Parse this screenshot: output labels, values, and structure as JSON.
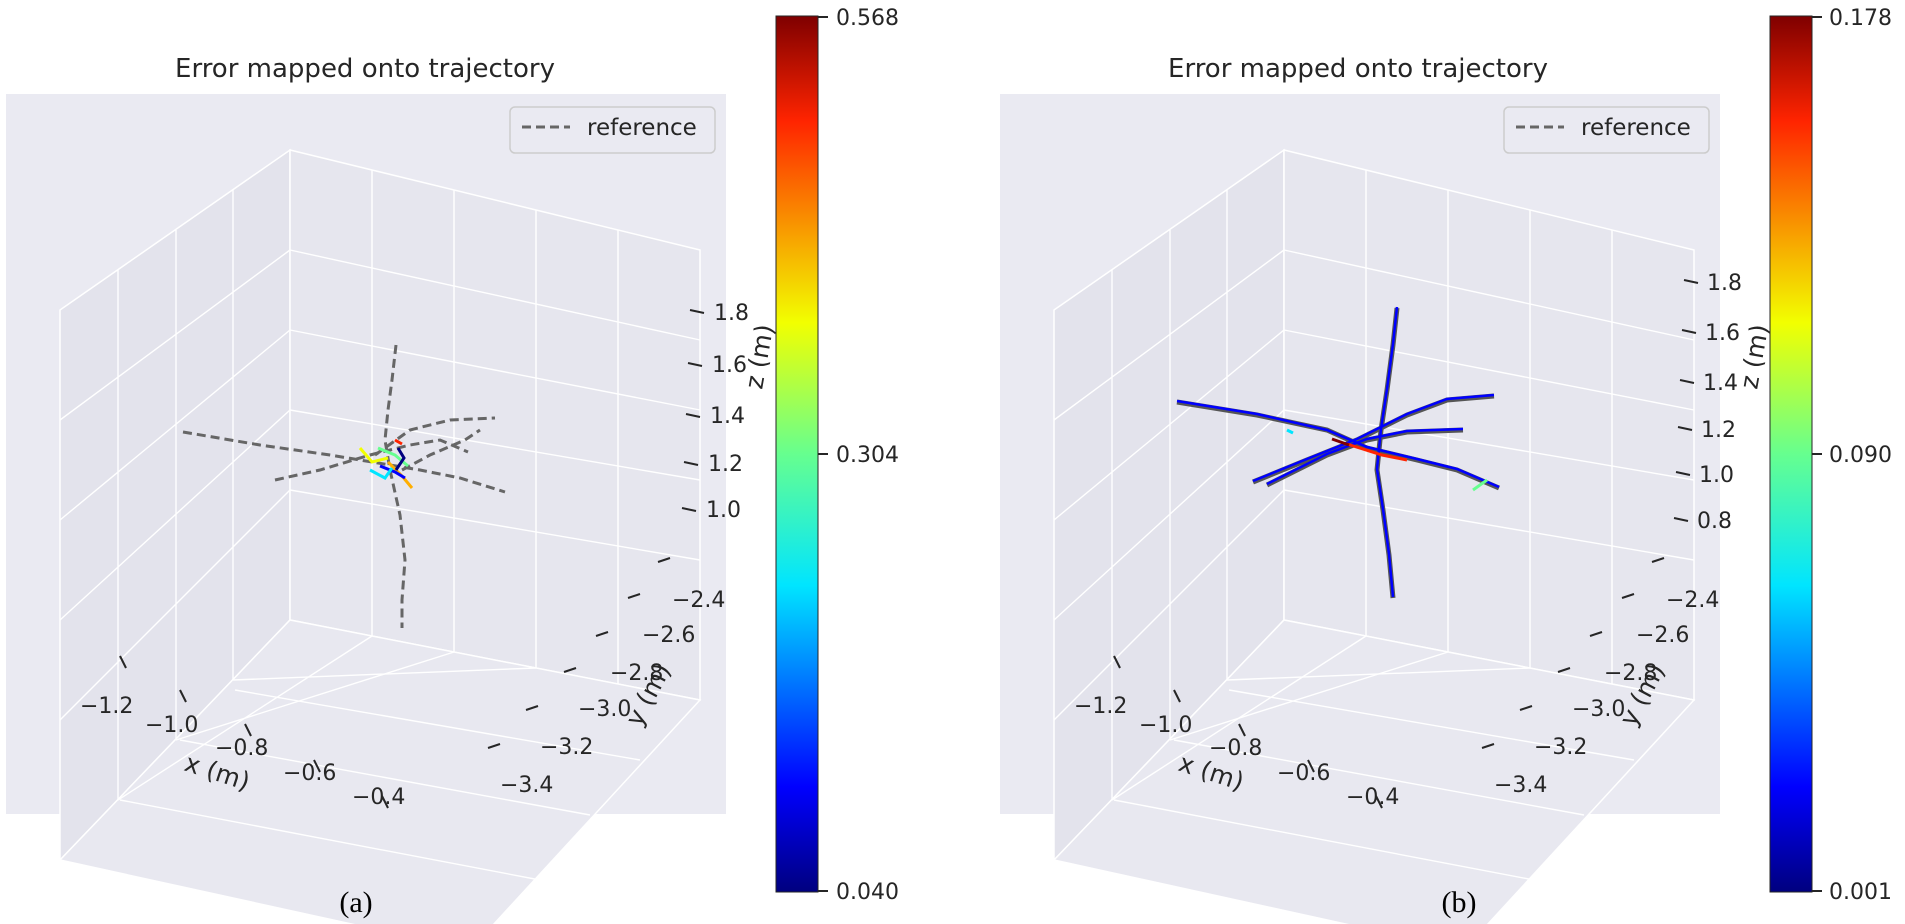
{
  "chart_data": [
    {
      "type": "line",
      "panel_label": "(a)",
      "title": "Error mapped onto trajectory",
      "legend": {
        "entries": [
          "reference"
        ],
        "placement": "top-right"
      },
      "xlabel": "x (m)",
      "ylabel": "y (m)",
      "zlabel": "z (m)",
      "x_ticks": [
        "−1.2",
        "−1.0",
        "−0.8",
        "−0.6",
        "−0.4"
      ],
      "y_ticks": [
        "−2.4",
        "−2.6",
        "−2.8",
        "−3.0",
        "−3.2",
        "−3.4"
      ],
      "z_ticks": [
        "1.8",
        "1.6",
        "1.4",
        "1.2",
        "1.0"
      ],
      "colorbar": {
        "colormap": "jet",
        "min": 0.04,
        "mid": 0.304,
        "max": 0.568,
        "tick_labels": [
          "0.568",
          "0.304",
          "0.040"
        ]
      },
      "grid": true,
      "colors": {
        "reference": "#666666",
        "pane": "#eaeaf2",
        "grid": "#ffffff"
      }
    },
    {
      "type": "line",
      "panel_label": "(b)",
      "title": "Error mapped onto trajectory",
      "legend": {
        "entries": [
          "reference"
        ],
        "placement": "top-right"
      },
      "xlabel": "x (m)",
      "ylabel": "y (m)",
      "zlabel": "z (m)",
      "x_ticks": [
        "−1.2",
        "−1.0",
        "−0.8",
        "−0.6",
        "−0.4"
      ],
      "y_ticks": [
        "−2.4",
        "−2.6",
        "−2.8",
        "−3.0",
        "−3.2",
        "−3.4"
      ],
      "z_ticks": [
        "1.8",
        "1.6",
        "1.4",
        "1.2",
        "1.0",
        "0.8"
      ],
      "colorbar": {
        "colormap": "jet",
        "min": 0.001,
        "mid": 0.09,
        "max": 0.178,
        "tick_labels": [
          "0.178",
          "0.090",
          "0.001"
        ]
      },
      "grid": true,
      "colors": {
        "reference": "#666666",
        "pane": "#eaeaf2",
        "grid": "#ffffff"
      }
    }
  ]
}
